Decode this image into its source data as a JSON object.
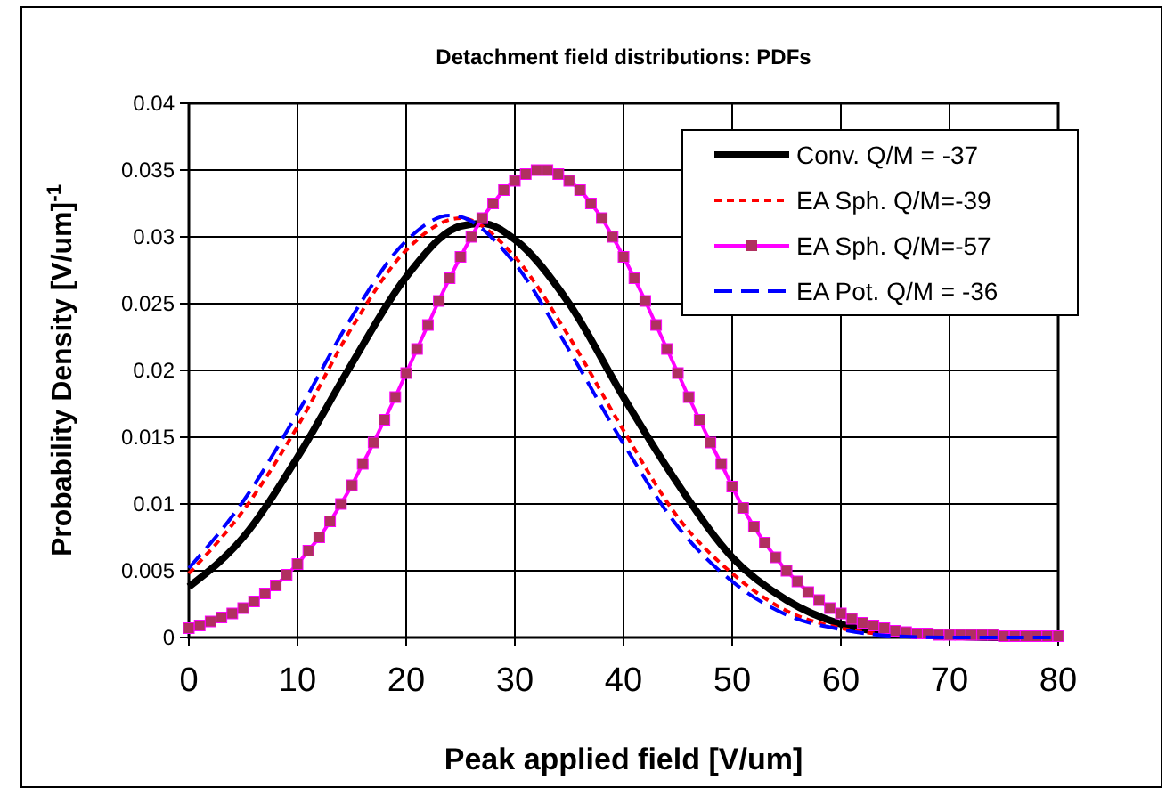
{
  "chart_data": {
    "type": "line",
    "title": "Detachment field distributions: PDFs",
    "xlabel": "Peak applied field [V/um]",
    "ylabel": "Probability Density [V/um]$^{-1}$",
    "xlim": [
      0,
      80
    ],
    "xticks": [
      0,
      10,
      20,
      30,
      40,
      50,
      60,
      70,
      80
    ],
    "ylim": [
      0,
      0.04
    ],
    "yticks": [
      0,
      0.005,
      0.01,
      0.015,
      0.02,
      0.025,
      0.03,
      0.035,
      0.04
    ],
    "grid": true,
    "legend": "top right",
    "series": [
      {
        "name": "Conv. Q/M = -37",
        "color": "#000000",
        "line_style": "solid",
        "marker": "none",
        "x": [
          0,
          5,
          10,
          15,
          20,
          25,
          27,
          30,
          35,
          40,
          45,
          50,
          55,
          60,
          65,
          70,
          75,
          80
        ],
        "values": [
          0.0038,
          0.0075,
          0.0135,
          0.0205,
          0.027,
          0.0308,
          0.031,
          0.0298,
          0.025,
          0.018,
          0.0115,
          0.006,
          0.0028,
          0.001,
          0.0003,
          0.0001,
          0,
          0
        ]
      },
      {
        "name": "EA Sph. Q/M=-39",
        "color": "#ff0000",
        "line_style": "dotted",
        "marker": "none",
        "x": [
          0,
          5,
          10,
          15,
          20,
          25,
          30,
          35,
          40,
          45,
          50,
          55,
          60,
          65,
          70
        ],
        "values": [
          0.0048,
          0.0095,
          0.0158,
          0.0232,
          0.029,
          0.0314,
          0.0285,
          0.0225,
          0.0155,
          0.009,
          0.0048,
          0.002,
          0.0007,
          0.0002,
          0.0001
        ]
      },
      {
        "name": "EA Sph. Q/M=-57",
        "color": "#ff00ff",
        "line_style": "solid",
        "marker": "square",
        "x": [
          0,
          1,
          2,
          3,
          4,
          5,
          6,
          7,
          8,
          9,
          10,
          11,
          12,
          13,
          14,
          15,
          16,
          17,
          18,
          19,
          20,
          21,
          22,
          23,
          24,
          25,
          26,
          27,
          28,
          29,
          30,
          31,
          32,
          33,
          34,
          35,
          36,
          37,
          38,
          39,
          40,
          41,
          42,
          43,
          44,
          45,
          46,
          47,
          48,
          49,
          50,
          51,
          52,
          53,
          54,
          55,
          56,
          57,
          58,
          59,
          60,
          61,
          62,
          63,
          64,
          65,
          66,
          67,
          68,
          69,
          70,
          71,
          72,
          73,
          74,
          75,
          76,
          77,
          78,
          79,
          80
        ],
        "values": [
          0.0007,
          0.0009,
          0.0012,
          0.0015,
          0.0018,
          0.0022,
          0.0027,
          0.0033,
          0.0039,
          0.0047,
          0.0055,
          0.0065,
          0.0075,
          0.0087,
          0.01,
          0.0114,
          0.013,
          0.0146,
          0.0163,
          0.018,
          0.0198,
          0.0216,
          0.0234,
          0.0252,
          0.0269,
          0.0285,
          0.03,
          0.0314,
          0.0325,
          0.0335,
          0.0342,
          0.0347,
          0.035,
          0.035,
          0.0347,
          0.0342,
          0.0335,
          0.0325,
          0.0314,
          0.03,
          0.0285,
          0.0269,
          0.0252,
          0.0234,
          0.0216,
          0.0198,
          0.018,
          0.0163,
          0.0146,
          0.013,
          0.0113,
          0.0097,
          0.0083,
          0.0071,
          0.006,
          0.005,
          0.0042,
          0.0034,
          0.0028,
          0.0022,
          0.0018,
          0.0014,
          0.0011,
          0.0009,
          0.0007,
          0.0005,
          0.0004,
          0.0003,
          0.0003,
          0.0002,
          0.0002,
          0.0002,
          0.0002,
          0.0002,
          0.0002,
          0.0001,
          0.0001,
          0.0001,
          0.0001,
          0.0001,
          0.0001
        ]
      },
      {
        "name": "EA Pot. Q/M = -36",
        "color": "#0000ff",
        "line_style": "dashed",
        "marker": "none",
        "x": [
          0,
          5,
          10,
          15,
          20,
          24,
          25,
          30,
          35,
          40,
          45,
          50,
          55,
          60,
          65,
          70,
          75,
          80
        ],
        "values": [
          0.0052,
          0.0102,
          0.0168,
          0.024,
          0.0297,
          0.0316,
          0.0315,
          0.028,
          0.0215,
          0.0145,
          0.0083,
          0.0042,
          0.0017,
          0.0006,
          0.0001,
          0,
          0,
          0
        ]
      }
    ]
  }
}
